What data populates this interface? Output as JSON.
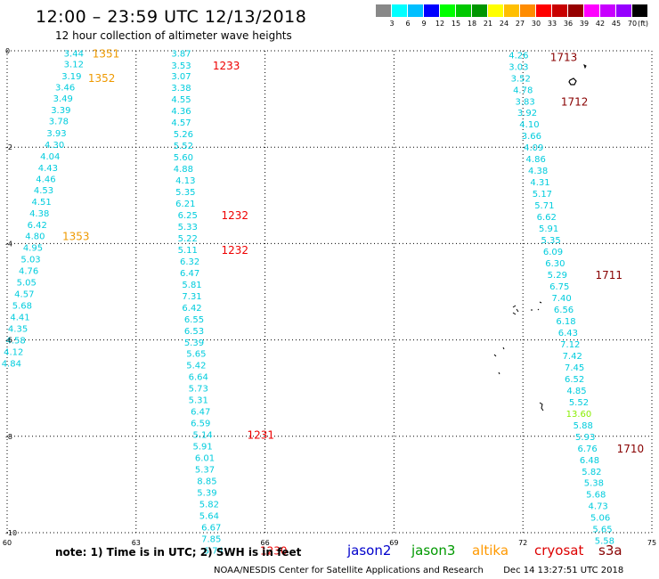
{
  "header": {
    "title": "12:00 – 23:59 UTC 12/13/2018",
    "subtitle": "12 hour collection of altimeter wave heights"
  },
  "colorbar": {
    "colors": [
      "#888888",
      "#00ffff",
      "#00bfff",
      "#0000ff",
      "#00ff00",
      "#00c800",
      "#009600",
      "#ffff00",
      "#ffbf00",
      "#ff8c00",
      "#ff0000",
      "#c80000",
      "#960000",
      "#ff00ff",
      "#c800ff",
      "#9600ff",
      "#000000"
    ],
    "labels": [
      "3",
      "6",
      "9",
      "12",
      "15",
      "18",
      "21",
      "24",
      "27",
      "30",
      "33",
      "36",
      "39",
      "42",
      "45",
      "70"
    ],
    "unit": "(ft)"
  },
  "axes": {
    "x_ticks": [
      {
        "value": 60,
        "label": "60"
      },
      {
        "value": 63,
        "label": "63"
      },
      {
        "value": 66,
        "label": "66"
      },
      {
        "value": 69,
        "label": "69"
      },
      {
        "value": 72,
        "label": "72"
      },
      {
        "value": 75,
        "label": "75"
      }
    ],
    "y_ticks": [
      {
        "value": 0,
        "label": "0"
      },
      {
        "value": -2,
        "label": "-2"
      },
      {
        "value": -4,
        "label": "-4"
      },
      {
        "value": -6,
        "label": "-6"
      },
      {
        "value": -8,
        "label": "-8"
      },
      {
        "value": -10,
        "label": "-10"
      }
    ]
  },
  "track_colors": {
    "jason": "#00ccdd",
    "altika": "#ee9900",
    "cryosat": "#ee0000",
    "s3a": "#880000",
    "altika_high": "#88ee00"
  },
  "tracks": {
    "track_a": {
      "color": "jason",
      "points": [
        {
          "lon": 61.55,
          "lat": -0.05,
          "v": "3.44"
        },
        {
          "lon": 61.55,
          "lat": -0.27,
          "v": "3.12"
        },
        {
          "lon": 61.5,
          "lat": -0.52,
          "v": "3.19"
        },
        {
          "lon": 61.35,
          "lat": -0.75,
          "v": "3.46"
        },
        {
          "lon": 61.3,
          "lat": -0.98,
          "v": "3.49"
        },
        {
          "lon": 61.25,
          "lat": -1.22,
          "v": "3.39"
        },
        {
          "lon": 61.2,
          "lat": -1.45,
          "v": "3.78"
        },
        {
          "lon": 61.15,
          "lat": -1.7,
          "v": "3.93"
        },
        {
          "lon": 61.1,
          "lat": -1.94,
          "v": "4.30"
        },
        {
          "lon": 61.0,
          "lat": -2.18,
          "v": "4.04"
        },
        {
          "lon": 60.95,
          "lat": -2.42,
          "v": "4.43"
        },
        {
          "lon": 60.9,
          "lat": -2.65,
          "v": "4.46"
        },
        {
          "lon": 60.85,
          "lat": -2.88,
          "v": "4.53"
        },
        {
          "lon": 60.8,
          "lat": -3.12,
          "v": "4.51"
        },
        {
          "lon": 60.75,
          "lat": -3.36,
          "v": "4.38"
        },
        {
          "lon": 60.7,
          "lat": -3.6,
          "v": "6.42"
        },
        {
          "lon": 60.65,
          "lat": -3.84,
          "v": "4.80"
        },
        {
          "lon": 60.6,
          "lat": -4.08,
          "v": "4.95"
        },
        {
          "lon": 60.55,
          "lat": -4.32,
          "v": "5.03"
        },
        {
          "lon": 60.5,
          "lat": -4.56,
          "v": "4.76"
        },
        {
          "lon": 60.45,
          "lat": -4.8,
          "v": "5.05"
        },
        {
          "lon": 60.4,
          "lat": -5.04,
          "v": "4.57"
        },
        {
          "lon": 60.35,
          "lat": -5.28,
          "v": "5.68"
        },
        {
          "lon": 60.3,
          "lat": -5.52,
          "v": "4.41"
        },
        {
          "lon": 60.25,
          "lat": -5.76,
          "v": "4.35"
        },
        {
          "lon": 60.2,
          "lat": -6.0,
          "v": "4.58"
        },
        {
          "lon": 60.15,
          "lat": -6.24,
          "v": "4.12"
        },
        {
          "lon": 60.1,
          "lat": -6.48,
          "v": "4.84"
        }
      ]
    },
    "track_b": {
      "color": "jason",
      "points": [
        {
          "lon": 64.05,
          "lat": -0.05,
          "v": "3.87"
        },
        {
          "lon": 64.05,
          "lat": -0.3,
          "v": "3.53"
        },
        {
          "lon": 64.05,
          "lat": -0.52,
          "v": "3.07"
        },
        {
          "lon": 64.05,
          "lat": -0.76,
          "v": "3.38"
        },
        {
          "lon": 64.05,
          "lat": -1.0,
          "v": "4.55"
        },
        {
          "lon": 64.05,
          "lat": -1.24,
          "v": "4.36"
        },
        {
          "lon": 64.05,
          "lat": -1.48,
          "v": "4.57"
        },
        {
          "lon": 64.1,
          "lat": -1.72,
          "v": "5.26"
        },
        {
          "lon": 64.1,
          "lat": -1.96,
          "v": "5.52"
        },
        {
          "lon": 64.1,
          "lat": -2.2,
          "v": "5.60"
        },
        {
          "lon": 64.1,
          "lat": -2.44,
          "v": "4.88"
        },
        {
          "lon": 64.15,
          "lat": -2.68,
          "v": "4.13"
        },
        {
          "lon": 64.15,
          "lat": -2.92,
          "v": "5.35"
        },
        {
          "lon": 64.15,
          "lat": -3.16,
          "v": "6.21"
        },
        {
          "lon": 64.2,
          "lat": -3.4,
          "v": "6.25"
        },
        {
          "lon": 64.2,
          "lat": -3.64,
          "v": "5.33"
        },
        {
          "lon": 64.2,
          "lat": -3.88,
          "v": "5.22"
        },
        {
          "lon": 64.2,
          "lat": -4.12,
          "v": "5.11"
        },
        {
          "lon": 64.25,
          "lat": -4.36,
          "v": "6.32"
        },
        {
          "lon": 64.25,
          "lat": -4.6,
          "v": "6.47"
        },
        {
          "lon": 64.3,
          "lat": -4.84,
          "v": "5.81"
        },
        {
          "lon": 64.3,
          "lat": -5.08,
          "v": "7.31"
        },
        {
          "lon": 64.3,
          "lat": -5.32,
          "v": "6.42"
        },
        {
          "lon": 64.35,
          "lat": -5.56,
          "v": "6.55"
        },
        {
          "lon": 64.35,
          "lat": -5.8,
          "v": "6.53"
        },
        {
          "lon": 64.35,
          "lat": -6.04,
          "v": "5.39"
        },
        {
          "lon": 64.4,
          "lat": -6.28,
          "v": "5.65"
        },
        {
          "lon": 64.4,
          "lat": -6.52,
          "v": "5.42"
        },
        {
          "lon": 64.45,
          "lat": -6.76,
          "v": "6.64"
        },
        {
          "lon": 64.45,
          "lat": -7.0,
          "v": "5.73"
        },
        {
          "lon": 64.45,
          "lat": -7.24,
          "v": "5.31"
        },
        {
          "lon": 64.5,
          "lat": -7.48,
          "v": "6.47"
        },
        {
          "lon": 64.5,
          "lat": -7.72,
          "v": "6.59"
        },
        {
          "lon": 64.55,
          "lat": -7.96,
          "v": "5.14"
        },
        {
          "lon": 64.55,
          "lat": -8.2,
          "v": "5.91"
        },
        {
          "lon": 64.6,
          "lat": -8.44,
          "v": "6.01"
        },
        {
          "lon": 64.6,
          "lat": -8.68,
          "v": "5.37"
        },
        {
          "lon": 64.65,
          "lat": -8.92,
          "v": "8.85"
        },
        {
          "lon": 64.65,
          "lat": -9.16,
          "v": "5.39"
        },
        {
          "lon": 64.7,
          "lat": -9.4,
          "v": "5.82"
        },
        {
          "lon": 64.7,
          "lat": -9.64,
          "v": "5.64"
        },
        {
          "lon": 64.75,
          "lat": -9.88,
          "v": "6.67"
        },
        {
          "lon": 64.75,
          "lat": -10.12,
          "v": "7.85"
        },
        {
          "lon": 64.8,
          "lat": -10.36,
          "v": "6.74"
        }
      ]
    },
    "track_c": {
      "color": "jason",
      "points": [
        {
          "lon": 71.9,
          "lat": -0.08,
          "v": "4.26"
        },
        {
          "lon": 71.9,
          "lat": -0.32,
          "v": "3.03"
        },
        {
          "lon": 71.95,
          "lat": -0.56,
          "v": "3.52"
        },
        {
          "lon": 72.0,
          "lat": -0.8,
          "v": "4.78"
        },
        {
          "lon": 72.05,
          "lat": -1.04,
          "v": "3.83"
        },
        {
          "lon": 72.1,
          "lat": -1.28,
          "v": "3.92"
        },
        {
          "lon": 72.15,
          "lat": -1.52,
          "v": "4.10"
        },
        {
          "lon": 72.2,
          "lat": -1.76,
          "v": "3.66"
        },
        {
          "lon": 72.25,
          "lat": -2.0,
          "v": "4.09"
        },
        {
          "lon": 72.3,
          "lat": -2.24,
          "v": "4.86"
        },
        {
          "lon": 72.35,
          "lat": -2.48,
          "v": "4.38"
        },
        {
          "lon": 72.4,
          "lat": -2.72,
          "v": "4.31"
        },
        {
          "lon": 72.45,
          "lat": -2.96,
          "v": "5.17"
        },
        {
          "lon": 72.5,
          "lat": -3.2,
          "v": "5.71"
        },
        {
          "lon": 72.55,
          "lat": -3.44,
          "v": "6.62"
        },
        {
          "lon": 72.6,
          "lat": -3.68,
          "v": "5.91"
        },
        {
          "lon": 72.65,
          "lat": -3.92,
          "v": "5.35"
        },
        {
          "lon": 72.7,
          "lat": -4.16,
          "v": "6.09"
        },
        {
          "lon": 72.75,
          "lat": -4.4,
          "v": "6.30"
        },
        {
          "lon": 72.8,
          "lat": -4.64,
          "v": "5.29"
        },
        {
          "lon": 72.85,
          "lat": -4.88,
          "v": "6.75"
        },
        {
          "lon": 72.9,
          "lat": -5.12,
          "v": "7.40"
        },
        {
          "lon": 72.95,
          "lat": -5.36,
          "v": "6.56"
        },
        {
          "lon": 73.0,
          "lat": -5.6,
          "v": "6.18"
        },
        {
          "lon": 73.05,
          "lat": -5.84,
          "v": "6.43"
        },
        {
          "lon": 73.1,
          "lat": -6.08,
          "v": "7.12"
        },
        {
          "lon": 73.15,
          "lat": -6.32,
          "v": "7.42"
        },
        {
          "lon": 73.2,
          "lat": -6.56,
          "v": "7.45"
        },
        {
          "lon": 73.2,
          "lat": -6.8,
          "v": "6.52"
        },
        {
          "lon": 73.25,
          "lat": -7.04,
          "v": "4.85"
        },
        {
          "lon": 73.3,
          "lat": -7.28,
          "v": "5.52"
        },
        {
          "lon": 73.3,
          "lat": -7.52,
          "v": "13.60",
          "color": "altika_high"
        },
        {
          "lon": 73.4,
          "lat": -7.76,
          "v": "5.88"
        },
        {
          "lon": 73.45,
          "lat": -8.0,
          "v": "5.93"
        },
        {
          "lon": 73.5,
          "lat": -8.24,
          "v": "6.76"
        },
        {
          "lon": 73.55,
          "lat": -8.48,
          "v": "6.48"
        },
        {
          "lon": 73.6,
          "lat": -8.72,
          "v": "5.82"
        },
        {
          "lon": 73.65,
          "lat": -8.96,
          "v": "5.38"
        },
        {
          "lon": 73.7,
          "lat": -9.2,
          "v": "5.68"
        },
        {
          "lon": 73.75,
          "lat": -9.44,
          "v": "4.73"
        },
        {
          "lon": 73.8,
          "lat": -9.68,
          "v": "5.06"
        },
        {
          "lon": 73.85,
          "lat": -9.92,
          "v": "5.65"
        },
        {
          "lon": 73.9,
          "lat": -10.16,
          "v": "5.58"
        }
      ]
    }
  },
  "time_labels": [
    {
      "lon": 62.3,
      "lat": -0.05,
      "t": "1351",
      "color": "altika"
    },
    {
      "lon": 62.2,
      "lat": -0.55,
      "t": "1352",
      "color": "altika"
    },
    {
      "lon": 61.6,
      "lat": -3.84,
      "t": "1353",
      "color": "altika"
    },
    {
      "lon": 65.1,
      "lat": -0.3,
      "t": "1233",
      "color": "cryosat"
    },
    {
      "lon": 65.3,
      "lat": -3.4,
      "t": "1232",
      "color": "cryosat"
    },
    {
      "lon": 65.3,
      "lat": -4.12,
      "t": "1232",
      "color": "cryosat"
    },
    {
      "lon": 65.9,
      "lat": -7.96,
      "t": "1231",
      "color": "cryosat"
    },
    {
      "lon": 66.2,
      "lat": -10.36,
      "t": "1230",
      "color": "cryosat"
    },
    {
      "lon": 72.95,
      "lat": -0.12,
      "t": "1713",
      "color": "s3a"
    },
    {
      "lon": 73.2,
      "lat": -1.04,
      "t": "1712",
      "color": "s3a"
    },
    {
      "lon": 74.0,
      "lat": -4.64,
      "t": "1711",
      "color": "s3a"
    },
    {
      "lon": 74.5,
      "lat": -8.24,
      "t": "1710",
      "color": "s3a"
    }
  ],
  "footer": {
    "note": "note:  1) Time is in UTC;  2) SWH is in feet",
    "satellites": [
      {
        "name": "jason2",
        "color": "#0000cc"
      },
      {
        "name": "jason3",
        "color": "#009900"
      },
      {
        "name": "altika",
        "color": "#ff9900"
      },
      {
        "name": "cryosat",
        "color": "#dd0000"
      },
      {
        "name": "s3a",
        "color": "#880000"
      }
    ],
    "credit": "NOAA/NESDIS Center for Satellite Applications and Research",
    "timestamp": "Dec 14 13:27:51 UTC 2018"
  }
}
